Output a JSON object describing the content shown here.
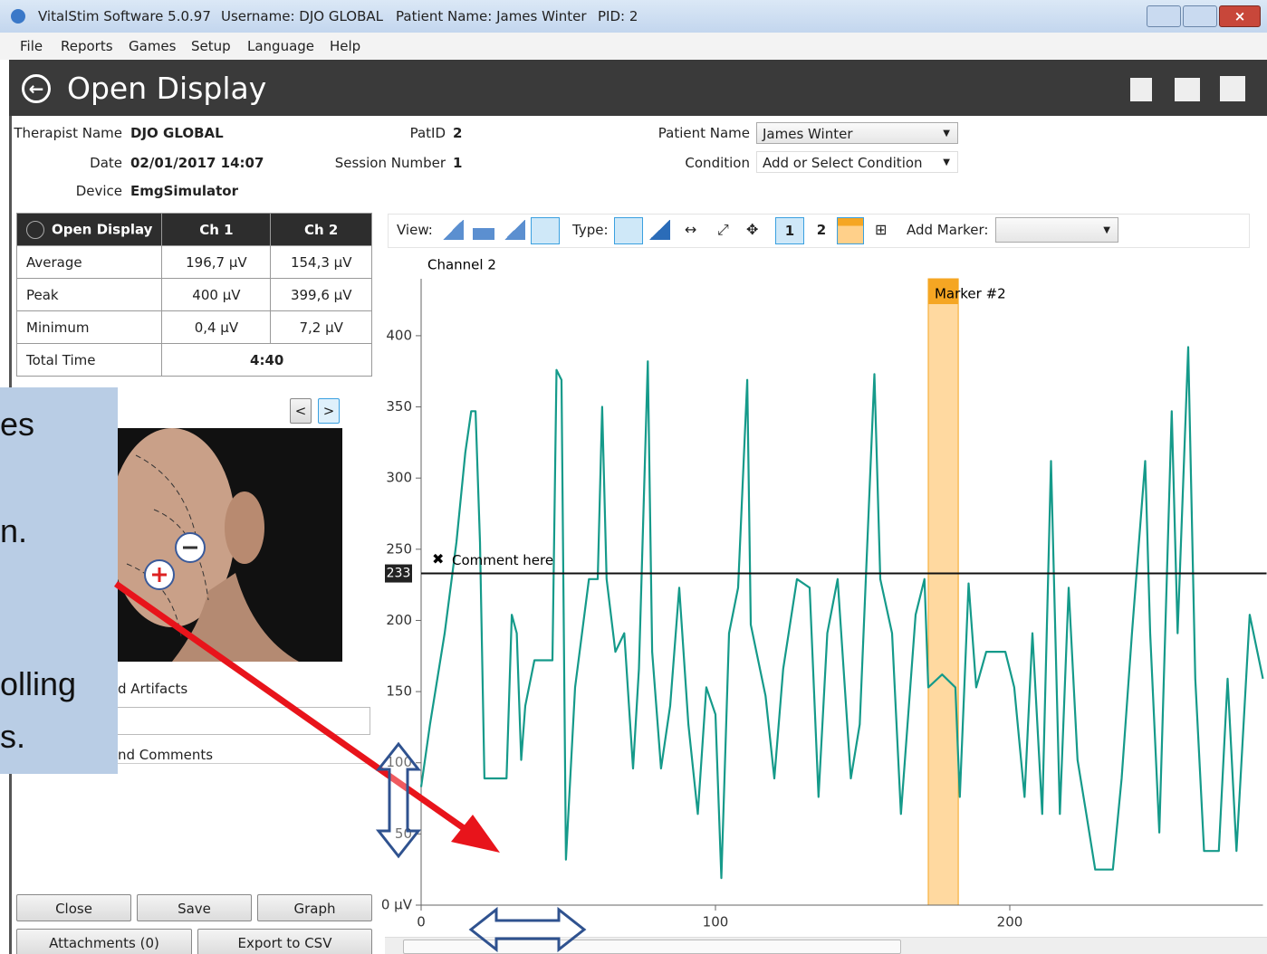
{
  "window": {
    "app": "VitalStim Software 5.0.97",
    "user": "Username: DJO GLOBAL",
    "patient": "Patient Name: James Winter",
    "pid": "PID: 2"
  },
  "menu": [
    "File",
    "Reports",
    "Games",
    "Setup",
    "Language",
    "Help"
  ],
  "header": {
    "title": "Open Display"
  },
  "info": {
    "therapist_label": "Therapist Name",
    "therapist": "DJO GLOBAL",
    "date_label": "Date",
    "date": "02/01/2017 14:07",
    "device_label": "Device",
    "device": "EmgSimulator",
    "patid_label": "PatID",
    "patid": "2",
    "session_label": "Session Number",
    "session": "1",
    "patient_label": "Patient Name",
    "patient": "James Winter",
    "condition_label": "Condition",
    "condition": "Add or Select Condition"
  },
  "table": {
    "header": [
      "Open Display",
      "Ch 1",
      "Ch 2"
    ],
    "rows": [
      [
        "Average",
        "196,7 µV",
        "154,3 µV"
      ],
      [
        "Peak",
        "400 µV",
        "399,6 µV"
      ],
      [
        "Minimum",
        "0,4 µV",
        "7,2 µV"
      ],
      [
        "Total Time",
        "4:40"
      ]
    ]
  },
  "image_nav": [
    "<",
    ">"
  ],
  "sections": [
    "d Artifacts",
    "nd Comments"
  ],
  "buttons": [
    "Close",
    "Save",
    "Graph",
    "Attachments (0)",
    "Export to CSV"
  ],
  "toolbar": {
    "view": "View:",
    "type": "Type:",
    "ch1": "1",
    "ch2": "2",
    "add_marker": "Add Marker:"
  },
  "overlay": [
    "es",
    "n.",
    "olling",
    "s."
  ],
  "chart_data": {
    "type": "line",
    "title": "Channel 2",
    "x": [
      0,
      3,
      8,
      12,
      15,
      17,
      18.5,
      20,
      21.5,
      29,
      30.8,
      32.5,
      34,
      35.4,
      38.5,
      44.6,
      46,
      47.7,
      49.2,
      52.3,
      57,
      60,
      61.5,
      63,
      66,
      69,
      72,
      74,
      77,
      78.5,
      81.5,
      84.6,
      87.7,
      90.8,
      94,
      96.9,
      100,
      102,
      104.6,
      107.7,
      110.8,
      112,
      117,
      120,
      123,
      127.7,
      132,
      135,
      138,
      141.5,
      146,
      149,
      154,
      156,
      160,
      163,
      168,
      171,
      172.3,
      177,
      181.5,
      183,
      186,
      188.6,
      192,
      198.5,
      201.5,
      205,
      207.7,
      211,
      214,
      217,
      220,
      223,
      226,
      229,
      235,
      238,
      241.5,
      246,
      247.7,
      250.8,
      255,
      257,
      260.6,
      263,
      266,
      271,
      274,
      277,
      281.5,
      286
    ],
    "series": [
      {
        "color": "#159a8a",
        "values": [
          83,
          127,
          191,
          255,
          318,
          347,
          347,
          255,
          89,
          89,
          204,
          191,
          102,
          140,
          172,
          172,
          376,
          369,
          32,
          153,
          229,
          229,
          350,
          229,
          178,
          191,
          96,
          166,
          382,
          178,
          96,
          140,
          223,
          127,
          64,
          153,
          134,
          19,
          191,
          223,
          369,
          197,
          147,
          89,
          166,
          229,
          223,
          76,
          191,
          229,
          89,
          127,
          373,
          229,
          191,
          64,
          204,
          229,
          153,
          162,
          153,
          76,
          226,
          153,
          178,
          178,
          153,
          76,
          191,
          64,
          312,
          64,
          223,
          102,
          64,
          25,
          25,
          89,
          191,
          312,
          191,
          51,
          347,
          191,
          392,
          159,
          38,
          38,
          159,
          38,
          204,
          159
        ]
      }
    ],
    "xlim": [
      0,
      286
    ],
    "ylim": [
      0,
      440
    ],
    "xticks": [
      0,
      100,
      200
    ],
    "yticks": [
      {
        "value": 0,
        "label": "0 µV"
      },
      50,
      100,
      150,
      200,
      250,
      300,
      350,
      400
    ],
    "threshold": 233,
    "threshold_color": "#111111",
    "comment": "Comment here",
    "marker": {
      "label": "Marker #2",
      "start": 172.3,
      "end": 182.5,
      "color": "#ffcc80"
    }
  }
}
